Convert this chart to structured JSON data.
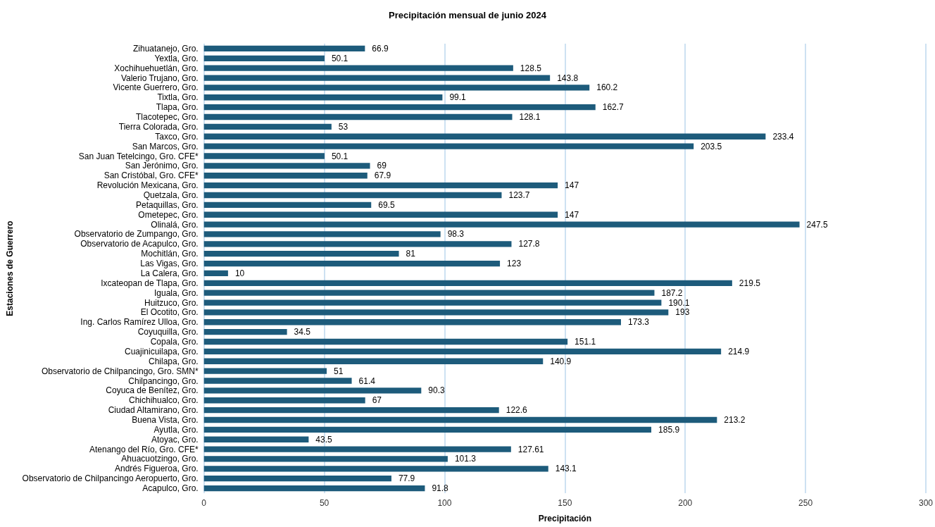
{
  "chart_data": {
    "type": "bar",
    "orientation": "horizontal",
    "title": "Precipitación mensual de junio 2024",
    "xlabel": "Precipitación",
    "ylabel": "Estaciones de Guerrero",
    "categories": [
      "Zihuatanejo, Gro.",
      "Yextla, Gro.",
      "Xochihuehuetlán, Gro.",
      "Valerio Trujano, Gro.",
      "Vicente Guerrero, Gro.",
      "Tixtla, Gro.",
      "Tlapa, Gro.",
      "Tlacotepec, Gro.",
      "Tierra Colorada, Gro.",
      "Taxco, Gro.",
      "San Marcos, Gro.",
      "San Juan Tetelcingo, Gro. CFE*",
      "San Jerónimo, Gro.",
      "San Cristóbal, Gro. CFE*",
      "Revolución Mexicana, Gro.",
      "Quetzala, Gro.",
      "Petaquillas, Gro.",
      "Ometepec, Gro.",
      "Olinalá, Gro.",
      "Observatorio de Zumpango, Gro.",
      "Observatorio de Acapulco, Gro.",
      "Mochitlán, Gro.",
      "Las Vigas, Gro.",
      "La Calera, Gro.",
      "Ixcateopan de Tlapa, Gro.",
      "Iguala, Gro.",
      "Huitzuco, Gro.",
      "El Ocotito, Gro.",
      "Ing. Carlos Ramírez Ulloa, Gro.",
      "Coyuquilla, Gro.",
      "Copala, Gro.",
      "Cuajinicuilapa, Gro.",
      "Chilapa, Gro.",
      "Observatorio de Chilpancingo, Gro. SMN*",
      "Chilpancingo, Gro.",
      "Coyuca de Benítez, Gro.",
      "Chichihualco, Gro.",
      "Ciudad Altamirano, Gro.",
      "Buena Vista, Gro.",
      "Ayutla, Gro.",
      "Atoyac, Gro.",
      "Atenango del Río, Gro. CFE*",
      "Ahuacuotzingo, Gro.",
      "Andrés Figueroa, Gro.",
      "Observatorio de Chilpancingo Aeropuerto, Gro.",
      "Acapulco, Gro."
    ],
    "values": [
      66.9,
      50.1,
      128.5,
      143.8,
      160.2,
      99.1,
      162.7,
      128.1,
      53,
      233.4,
      203.5,
      50.1,
      69,
      67.9,
      147,
      123.7,
      69.5,
      147,
      247.5,
      98.3,
      127.8,
      81,
      123,
      10,
      219.5,
      187.2,
      190.1,
      193,
      173.3,
      34.5,
      151.1,
      214.9,
      140.9,
      51,
      61.4,
      90.3,
      67,
      122.6,
      213.2,
      185.9,
      43.5,
      127.61,
      101.3,
      143.1,
      77.9,
      91.8
    ],
    "color": "#1d5b7b",
    "data_labels": true,
    "xlim": [
      0,
      300
    ],
    "xticks": [
      0,
      50,
      100,
      150,
      200,
      250,
      300
    ],
    "grid": "x"
  }
}
